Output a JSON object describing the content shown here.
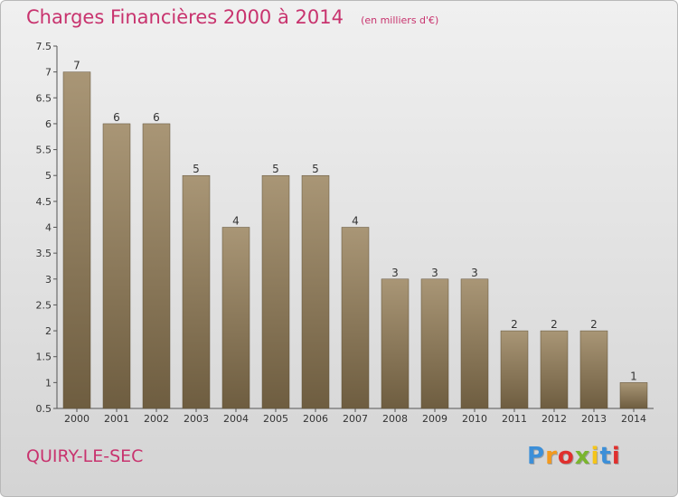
{
  "chart_data": {
    "type": "bar",
    "title": "Charges Financières 2000 à 2014",
    "subtitle": "(en milliers d'€)",
    "categories": [
      "2000",
      "2001",
      "2002",
      "2003",
      "2004",
      "2005",
      "2006",
      "2007",
      "2008",
      "2009",
      "2010",
      "2011",
      "2012",
      "2013",
      "2014"
    ],
    "values": [
      7,
      6,
      6,
      5,
      4,
      5,
      5,
      4,
      3,
      3,
      3,
      2,
      2,
      2,
      1
    ],
    "data_labels": [
      "7",
      "6",
      "6",
      "5",
      "4",
      "5",
      "5",
      "4",
      "3",
      "3",
      "3",
      "2",
      "2",
      "2",
      "1"
    ],
    "yticks": [
      0.5,
      1,
      1.5,
      2,
      2.5,
      3,
      3.5,
      4,
      4.5,
      5,
      5.5,
      6,
      6.5,
      7,
      7.5
    ],
    "ytick_labels": [
      "0.5",
      "1",
      "1.5",
      "2",
      "2.5",
      "3",
      "3.5",
      "4",
      "4.5",
      "5",
      "5.5",
      "6",
      "6.5",
      "7",
      "7.5"
    ],
    "ylim": [
      0.5,
      7.5
    ],
    "xlabel": "",
    "ylabel": "",
    "grid": false,
    "bar_color": "#9b8766"
  },
  "footer": {
    "place": "QUIRY-LE-SEC"
  },
  "logo": {
    "letters": [
      "P",
      "r",
      "o",
      "x",
      "i",
      "t",
      "i"
    ],
    "colors": [
      "#3c8fd8",
      "#f39a1e",
      "#e0302e",
      "#7ab52e",
      "#f5c519",
      "#3c8fd8",
      "#e0302e"
    ]
  }
}
